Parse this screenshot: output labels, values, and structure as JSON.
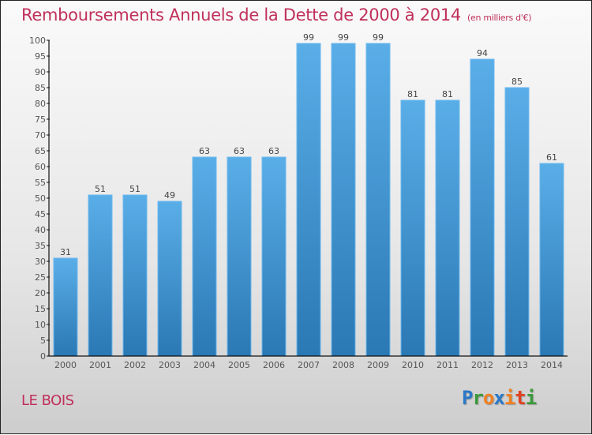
{
  "chart_data": {
    "type": "bar",
    "title": "Remboursements Annuels de la Dette de 2000 à 2014",
    "subtitle": "(en milliers d'€)",
    "xlabel": "",
    "ylabel": "",
    "categories": [
      "2000",
      "2001",
      "2002",
      "2003",
      "2004",
      "2005",
      "2006",
      "2007",
      "2008",
      "2009",
      "2010",
      "2011",
      "2012",
      "2013",
      "2014"
    ],
    "values": [
      31,
      51,
      51,
      49,
      63,
      63,
      63,
      99,
      99,
      99,
      81,
      81,
      94,
      85,
      61
    ],
    "ylim": [
      0,
      100
    ],
    "yticks": [
      0,
      5,
      10,
      15,
      20,
      25,
      30,
      35,
      40,
      45,
      50,
      55,
      60,
      65,
      70,
      75,
      80,
      85,
      90,
      95,
      100
    ],
    "grid": false,
    "legend": "none",
    "bar_color": "#4a9fe0",
    "data_labels": true
  },
  "footer": {
    "place": "LE BOIS",
    "logo": [
      {
        "ch": "P",
        "color": "#2a78c8"
      },
      {
        "ch": "r",
        "color": "#3a9a3a"
      },
      {
        "ch": "o",
        "color": "#f08020"
      },
      {
        "ch": "x",
        "color": "#2a78c8"
      },
      {
        "ch": "i",
        "color": "#f08020"
      },
      {
        "ch": "t",
        "color": "#e04020"
      },
      {
        "ch": "i",
        "color": "#3a9a3a"
      }
    ]
  }
}
